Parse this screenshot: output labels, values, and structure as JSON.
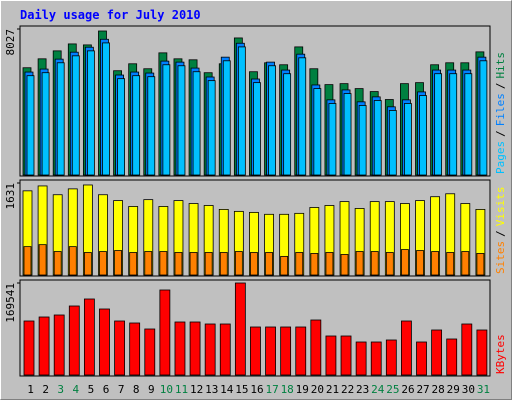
{
  "title": "Daily usage for July 2010",
  "chart_data": [
    {
      "type": "bar",
      "ylim": [
        0,
        8027
      ],
      "yticks": [
        8027
      ],
      "separator": "/",
      "series": [
        {
          "name": "Hits",
          "color": "#008040",
          "values": [
            5897,
            6388,
            6825,
            7207,
            7153,
            7917,
            5733,
            6115,
            5842,
            6716,
            6388,
            6334,
            5624,
            6115,
            7535,
            5678,
            6170,
            6061,
            7043,
            5842,
            4969,
            5023,
            4750,
            4586,
            4150,
            5023,
            5078,
            6061,
            6170,
            6170,
            6770
          ]
        },
        {
          "name": "Files",
          "color": "#0080FF",
          "values": [
            5660,
            5824,
            6370,
            6752,
            7025,
            7462,
            5496,
            5660,
            5605,
            6261,
            6206,
            5878,
            5387,
            6479,
            7243,
            5278,
            6206,
            5769,
            6643,
            4950,
            4131,
            4677,
            4022,
            4295,
            3749,
            4131,
            4568,
            5769,
            5769,
            5769,
            6479
          ]
        },
        {
          "name": "Pages",
          "color": "#00C0FF",
          "values": [
            5460,
            5624,
            6170,
            6552,
            6825,
            7262,
            5296,
            5460,
            5405,
            6061,
            6006,
            5678,
            5187,
            6279,
            7043,
            5078,
            6006,
            5569,
            6443,
            4750,
            3931,
            4477,
            3822,
            4095,
            3549,
            3931,
            4368,
            5569,
            5569,
            5569,
            6279
          ]
        }
      ]
    },
    {
      "type": "bar",
      "ylim": [
        0,
        1631
      ],
      "yticks": [
        1631
      ],
      "separator": "/",
      "series": [
        {
          "name": "Visits",
          "color": "#FFFF00",
          "values": [
            1492,
            1579,
            1423,
            1527,
            1596,
            1423,
            1319,
            1215,
            1336,
            1215,
            1319,
            1267,
            1232,
            1163,
            1128,
            1110,
            1076,
            1076,
            1093,
            1197,
            1232,
            1301,
            1180,
            1301,
            1301,
            1267,
            1319,
            1388,
            1440,
            1267,
            1163
          ]
        },
        {
          "name": "Sites",
          "color": "#FF8000",
          "values": [
            503,
            538,
            416,
            503,
            399,
            416,
            434,
            399,
            416,
            416,
            399,
            399,
            399,
            399,
            416,
            399,
            399,
            330,
            399,
            382,
            399,
            364,
            416,
            416,
            399,
            451,
            434,
            416,
            399,
            416,
            382
          ]
        }
      ]
    },
    {
      "type": "bar",
      "ylim": [
        0,
        169541
      ],
      "yticks": [
        169541
      ],
      "categories": [
        "1",
        "2",
        "3",
        "4",
        "5",
        "6",
        "7",
        "8",
        "9",
        "10",
        "11",
        "12",
        "13",
        "14",
        "15",
        "16",
        "17",
        "18",
        "19",
        "20",
        "21",
        "22",
        "23",
        "24",
        "25",
        "26",
        "27",
        "28",
        "29",
        "30",
        "31"
      ],
      "category_colors": [
        "#000000",
        "#000000",
        "#008040",
        "#008040",
        "#000000",
        "#000000",
        "#000000",
        "#000000",
        "#000000",
        "#008040",
        "#008040",
        "#000000",
        "#000000",
        "#000000",
        "#000000",
        "#000000",
        "#008040",
        "#008040",
        "#000000",
        "#000000",
        "#000000",
        "#000000",
        "#000000",
        "#008040",
        "#008040",
        "#000000",
        "#000000",
        "#000000",
        "#000000",
        "#000000",
        "#008040"
      ],
      "series": [
        {
          "name": "KBytes",
          "color": "#FF0000",
          "values": [
            99522,
            106894,
            110580,
            127167,
            140068,
            121638,
            99522,
            95836,
            84778,
            156655,
            97679,
            97679,
            93993,
            93993,
            169541,
            88464,
            88464,
            88464,
            88464,
            101365,
            71877,
            71877,
            60819,
            60819,
            64505,
            99522,
            60819,
            82935,
            66348,
            93993,
            82935
          ]
        }
      ]
    }
  ]
}
